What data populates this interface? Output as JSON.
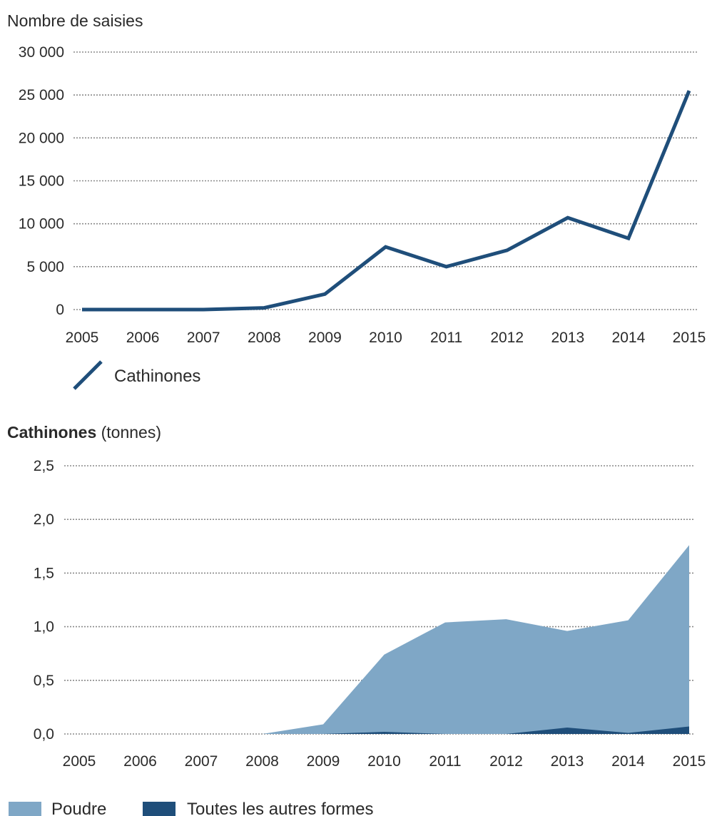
{
  "chart_data": [
    {
      "type": "line",
      "title": "",
      "ylabel": "Nombre de saisies",
      "xlabel": "",
      "x": [
        "2005",
        "2006",
        "2007",
        "2008",
        "2009",
        "2010",
        "2011",
        "2012",
        "2013",
        "2014",
        "2015"
      ],
      "ylim": [
        0,
        30000
      ],
      "yticks": [
        0,
        5000,
        10000,
        15000,
        20000,
        25000,
        30000
      ],
      "ytick_labels": [
        "0",
        "5 000",
        "10 000",
        "15 000",
        "20 000",
        "25 000",
        "30 000"
      ],
      "grid": true,
      "legend_position": "bottom-left",
      "series": [
        {
          "name": "Cathinones",
          "color": "#1f4e7a",
          "values": [
            0,
            0,
            0,
            200,
            1800,
            7300,
            5000,
            6900,
            10700,
            8300,
            25500
          ]
        }
      ]
    },
    {
      "type": "area",
      "title": "",
      "ylabel_bold": "Cathinones",
      "ylabel_rest": " (tonnes)",
      "xlabel": "",
      "x": [
        "2005",
        "2006",
        "2007",
        "2008",
        "2009",
        "2010",
        "2011",
        "2012",
        "2013",
        "2014",
        "2015"
      ],
      "ylim": [
        0,
        2.5
      ],
      "yticks": [
        0,
        0.5,
        1.0,
        1.5,
        2.0,
        2.5
      ],
      "ytick_labels": [
        "0,0",
        "0,5",
        "1,0",
        "1,5",
        "2,0",
        "2,5"
      ],
      "grid": true,
      "legend_position": "bottom-left",
      "series": [
        {
          "name": "Poudre",
          "color": "#7fa7c6",
          "values": [
            0,
            0,
            0,
            0,
            0.09,
            0.74,
            1.04,
            1.07,
            0.96,
            1.06,
            1.76
          ]
        },
        {
          "name": "Toutes les autres formes",
          "color": "#1f4e7a",
          "values": [
            0,
            0,
            0,
            0,
            0,
            0.02,
            0.0,
            0.0,
            0.06,
            0.01,
            0.07
          ]
        }
      ]
    }
  ]
}
